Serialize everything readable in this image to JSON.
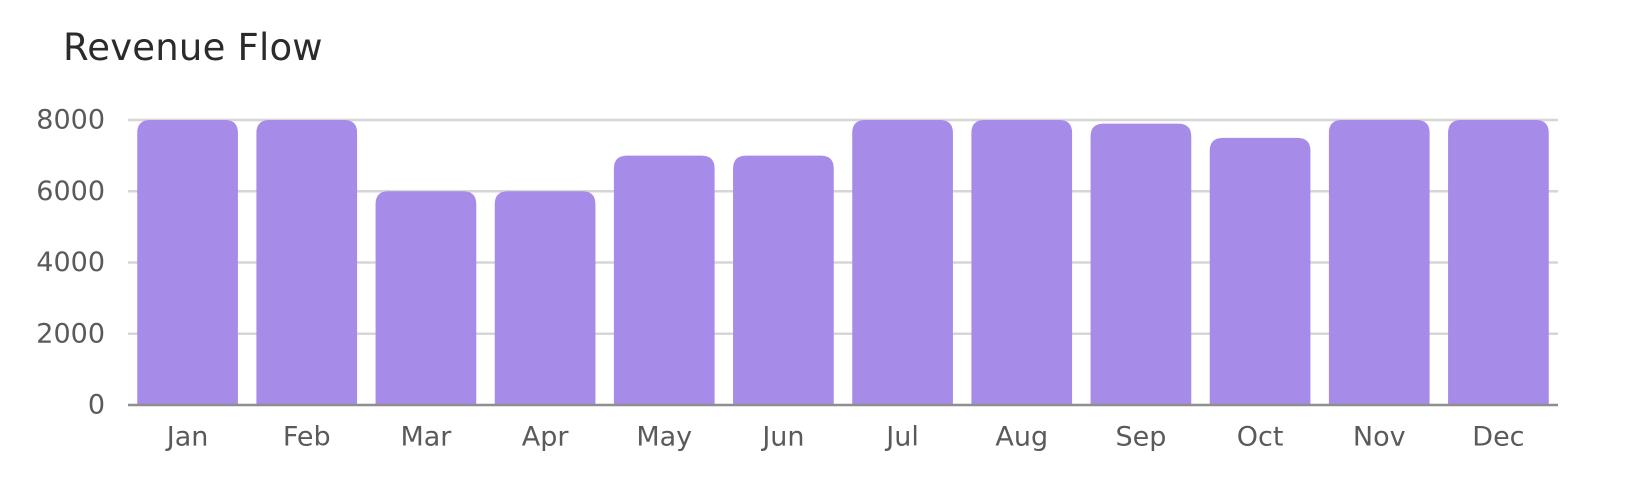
{
  "chart_data": {
    "type": "bar",
    "title": "Revenue Flow",
    "categories": [
      "Jan",
      "Feb",
      "Mar",
      "Apr",
      "May",
      "Jun",
      "Jul",
      "Aug",
      "Sep",
      "Oct",
      "Nov",
      "Dec"
    ],
    "values": [
      8000,
      8000,
      6000,
      6000,
      7000,
      7000,
      8000,
      8000,
      7900,
      7500,
      8000,
      8000
    ],
    "yticks": [
      0,
      2000,
      4000,
      6000,
      8000
    ],
    "ylim": [
      0,
      8000
    ],
    "grid": true,
    "legend": "none",
    "bar_color": "#a78be8",
    "grid_color": "#d6d6d6",
    "axis_color": "#8e8e8e"
  }
}
